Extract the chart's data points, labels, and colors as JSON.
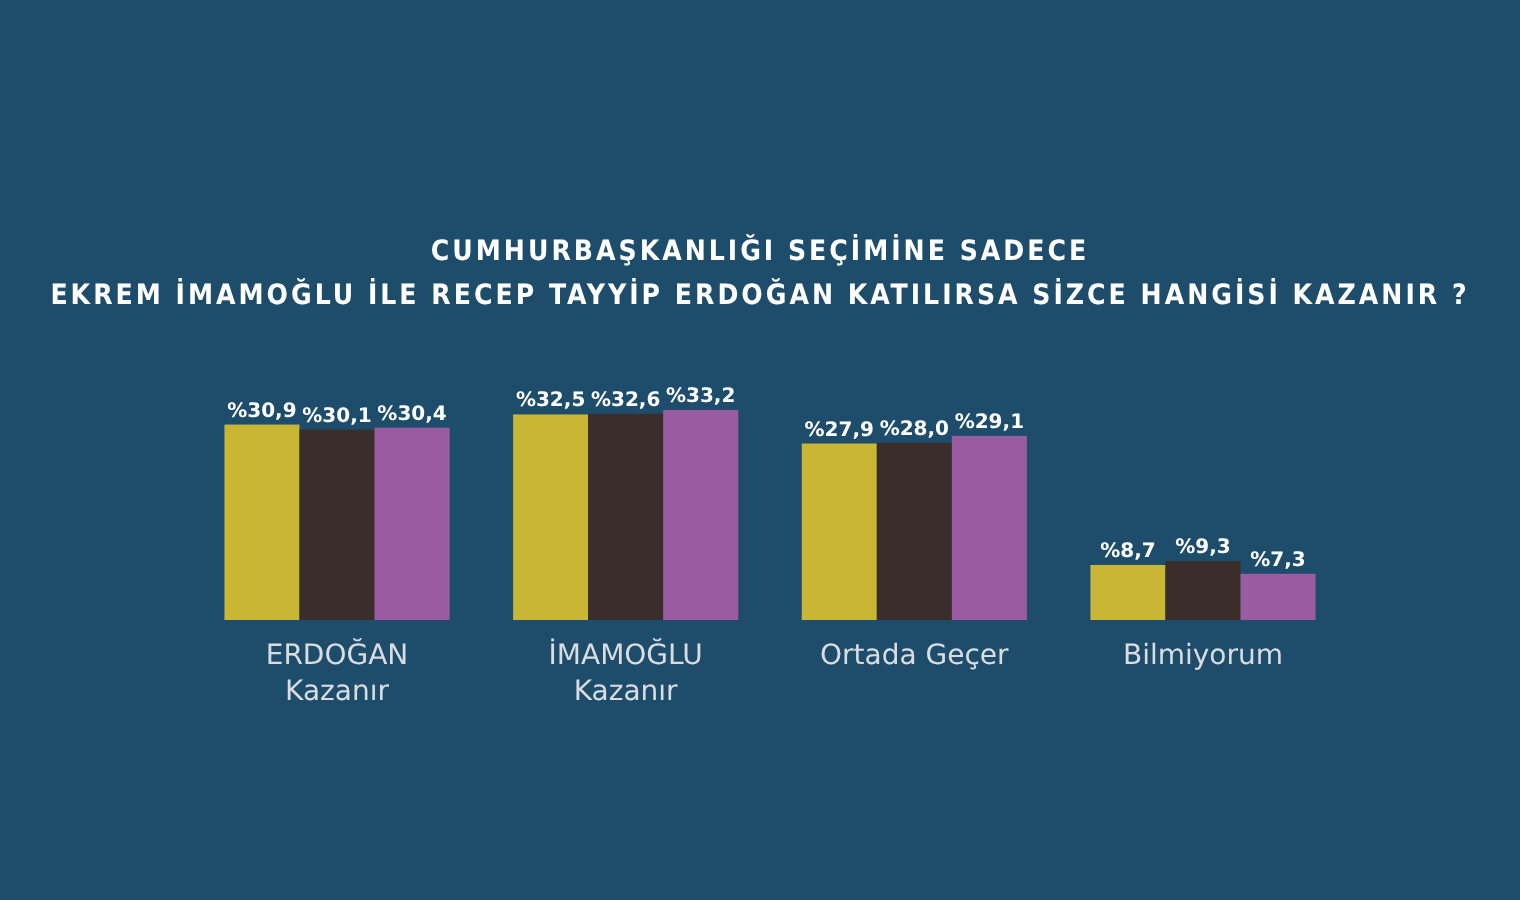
{
  "chart_data": {
    "type": "bar",
    "title": "CUMHURBAŞKANLIĞI SEÇİMİNE SADECE\nEKREM İMAMOĞLU İLE RECEP TAYYİP ERDOĞAN KATILIRSA SİZCE HANGİSİ KAZANIR ?",
    "categories": [
      "ERDOĞAN\nKazanır",
      "İMAMOĞLU\nKazanır",
      "Ortada Geçer",
      "Bilmiyorum"
    ],
    "series": [
      {
        "color": "#c9b634",
        "values": [
          30.9,
          32.5,
          27.9,
          8.7
        ],
        "value_labels": [
          "%30,9",
          "%32,5",
          "%27,9",
          "%8,7"
        ]
      },
      {
        "color": "#3a2d2a",
        "values": [
          30.1,
          32.6,
          28.0,
          9.3
        ],
        "value_labels": [
          "%30,1",
          "%32,6",
          "%28,0",
          "%9,3"
        ]
      },
      {
        "color": "#9b5ba3",
        "values": [
          30.4,
          33.2,
          29.1,
          7.3
        ],
        "value_labels": [
          "%30,4",
          "%33,2",
          "%29,1",
          "%7,3"
        ]
      }
    ],
    "grid": false
  }
}
